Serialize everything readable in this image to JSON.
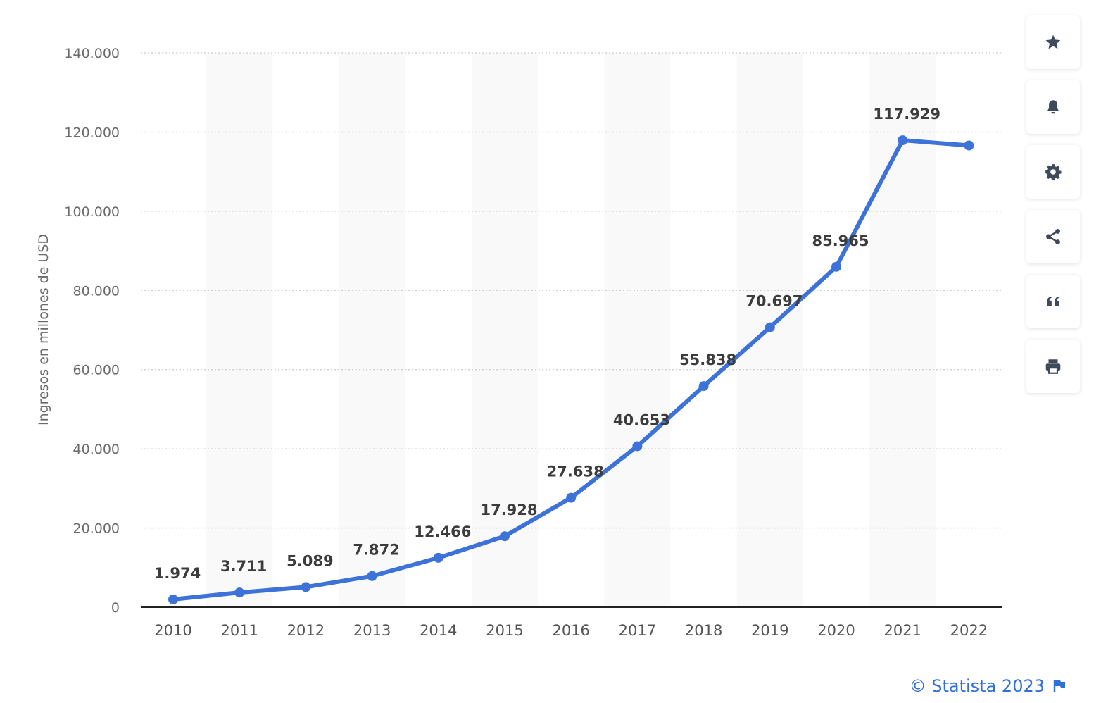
{
  "chart_data": {
    "type": "line",
    "ylabel": "Ingresos en millones de USD",
    "xlabel": "",
    "ylim": [
      0,
      140000
    ],
    "yticks": [
      0,
      20000,
      40000,
      60000,
      80000,
      100000,
      120000,
      140000
    ],
    "ytick_labels": [
      "0",
      "20.000",
      "40.000",
      "60.000",
      "80.000",
      "100.000",
      "120.000",
      "140.000"
    ],
    "categories": [
      "2010",
      "2011",
      "2012",
      "2013",
      "2014",
      "2015",
      "2016",
      "2017",
      "2018",
      "2019",
      "2020",
      "2021",
      "2022"
    ],
    "series": [
      {
        "values": [
          1974,
          3711,
          5089,
          7872,
          12466,
          17928,
          27638,
          40653,
          55838,
          70697,
          85965,
          117929,
          116600
        ],
        "data_labels": [
          "1.974",
          "3.711",
          "5.089",
          "7.872",
          "12.466",
          "17.928",
          "27.638",
          "40.653",
          "55.838",
          "70.697",
          "85.965",
          "117.929",
          ""
        ]
      }
    ],
    "line_color": "#3d72d9",
    "grid": "horizontal-dotted",
    "alternating_column_bands": true,
    "band_color": "#f9f9fa"
  },
  "toolbar": {
    "items": [
      {
        "icon": "star-icon"
      },
      {
        "icon": "bell-icon"
      },
      {
        "icon": "gear-icon"
      },
      {
        "icon": "share-icon"
      },
      {
        "icon": "quote-icon"
      },
      {
        "icon": "print-icon"
      }
    ]
  },
  "credit": {
    "text": "© Statista 2023",
    "color": "#2f6fd6",
    "icon": "flag-icon"
  }
}
